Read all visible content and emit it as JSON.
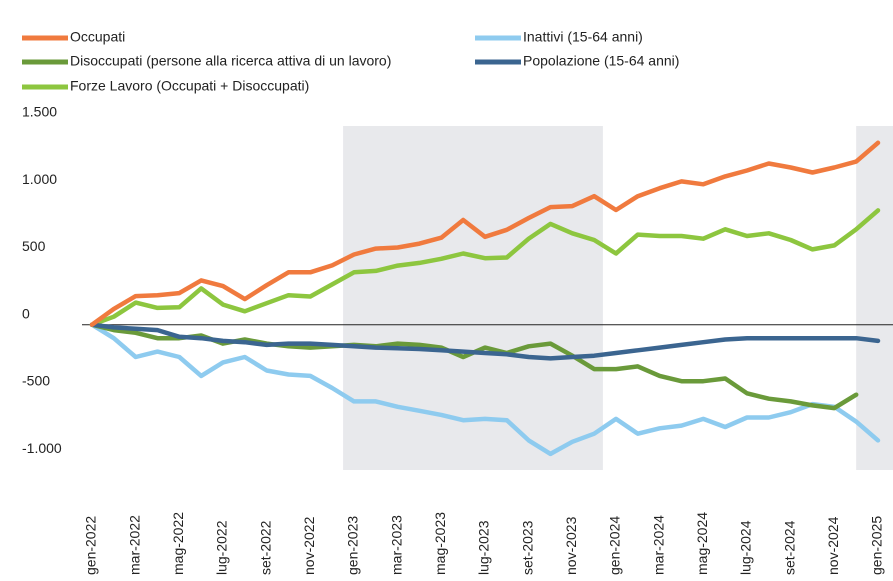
{
  "chart_data": {
    "type": "line",
    "categories": [
      "gen-2022",
      null,
      "mar-2022",
      null,
      "mag-2022",
      null,
      "lug-2022",
      null,
      "set-2022",
      null,
      "nov-2022",
      null,
      "gen-2023",
      null,
      "mar-2023",
      null,
      "mag-2023",
      null,
      "lug-2023",
      null,
      "set-2023",
      null,
      "nov-2023",
      null,
      "gen-2024",
      null,
      "mar-2024",
      null,
      "mag-2024",
      null,
      "lug-2024",
      null,
      "set-2024",
      null,
      "nov-2024",
      null,
      "gen-2025"
    ],
    "series": [
      {
        "name": "Occupati",
        "color": "#f07a3e",
        "values": [
          0,
          118,
          213,
          220,
          235,
          330,
          287,
          191,
          294,
          390,
          390,
          441,
          522,
          566,
          574,
          603,
          647,
          779,
          654,
          706,
          794,
          875,
          882,
          956,
          853,
          956,
          1015,
          1066,
          1044,
          1103,
          1147,
          1199,
          1169,
          1132,
          1169,
          1213,
          1353
        ]
      },
      {
        "name": "Disoccupati (persone alla ricerca attiva di un lavoro)",
        "color": "#6a9a3a",
        "values": [
          0,
          -40,
          -60,
          -100,
          -100,
          -80,
          -140,
          -110,
          -140,
          -160,
          -170,
          -160,
          -150,
          -160,
          -140,
          -150,
          -170,
          -240,
          -170,
          -210,
          -160,
          -140,
          -230,
          -330,
          -330,
          -310,
          -380,
          -420,
          -420,
          -400,
          -510,
          -550,
          -570,
          -600,
          -620,
          -520,
          null
        ]
      },
      {
        "name": "Forze Lavoro (Occupati + Disoccupati)",
        "color": "#8dc63f",
        "values": [
          0,
          60,
          165,
          125,
          130,
          270,
          150,
          100,
          160,
          220,
          210,
          300,
          390,
          400,
          440,
          460,
          490,
          530,
          495,
          500,
          640,
          750,
          680,
          630,
          530,
          670,
          660,
          660,
          640,
          710,
          660,
          680,
          630,
          560,
          590,
          710,
          850
        ]
      },
      {
        "name": "Inattivi (15-64 anni)",
        "color": "#8ecbef",
        "values": [
          0,
          -100,
          -240,
          -200,
          -240,
          -380,
          -280,
          -240,
          -340,
          -370,
          -380,
          -470,
          -570,
          -570,
          -610,
          -640,
          -670,
          -710,
          -700,
          -710,
          -860,
          -960,
          -870,
          -810,
          -700,
          -810,
          -770,
          -750,
          -700,
          -760,
          -690,
          -690,
          -650,
          -590,
          -610,
          -720,
          -860
        ]
      },
      {
        "name": "Popolazione (15-64 anni)",
        "color": "#3b6590",
        "values": [
          0,
          -20,
          -30,
          -40,
          -90,
          -100,
          -120,
          -130,
          -150,
          -140,
          -140,
          -150,
          -160,
          -170,
          -175,
          -180,
          -190,
          -200,
          -210,
          -220,
          -240,
          -250,
          -240,
          -230,
          -210,
          -190,
          -170,
          -150,
          -130,
          -110,
          -100,
          -100,
          -100,
          -100,
          -100,
          -100,
          -120
        ]
      }
    ],
    "ylim": [
      -1080,
      1500
    ],
    "yticks": [
      {
        "value": -1000,
        "label": "-1.000"
      },
      -500,
      0,
      500,
      {
        "value": 1000,
        "label": "1.000"
      },
      {
        "value": 1500,
        "label": "1.500"
      }
    ]
  }
}
